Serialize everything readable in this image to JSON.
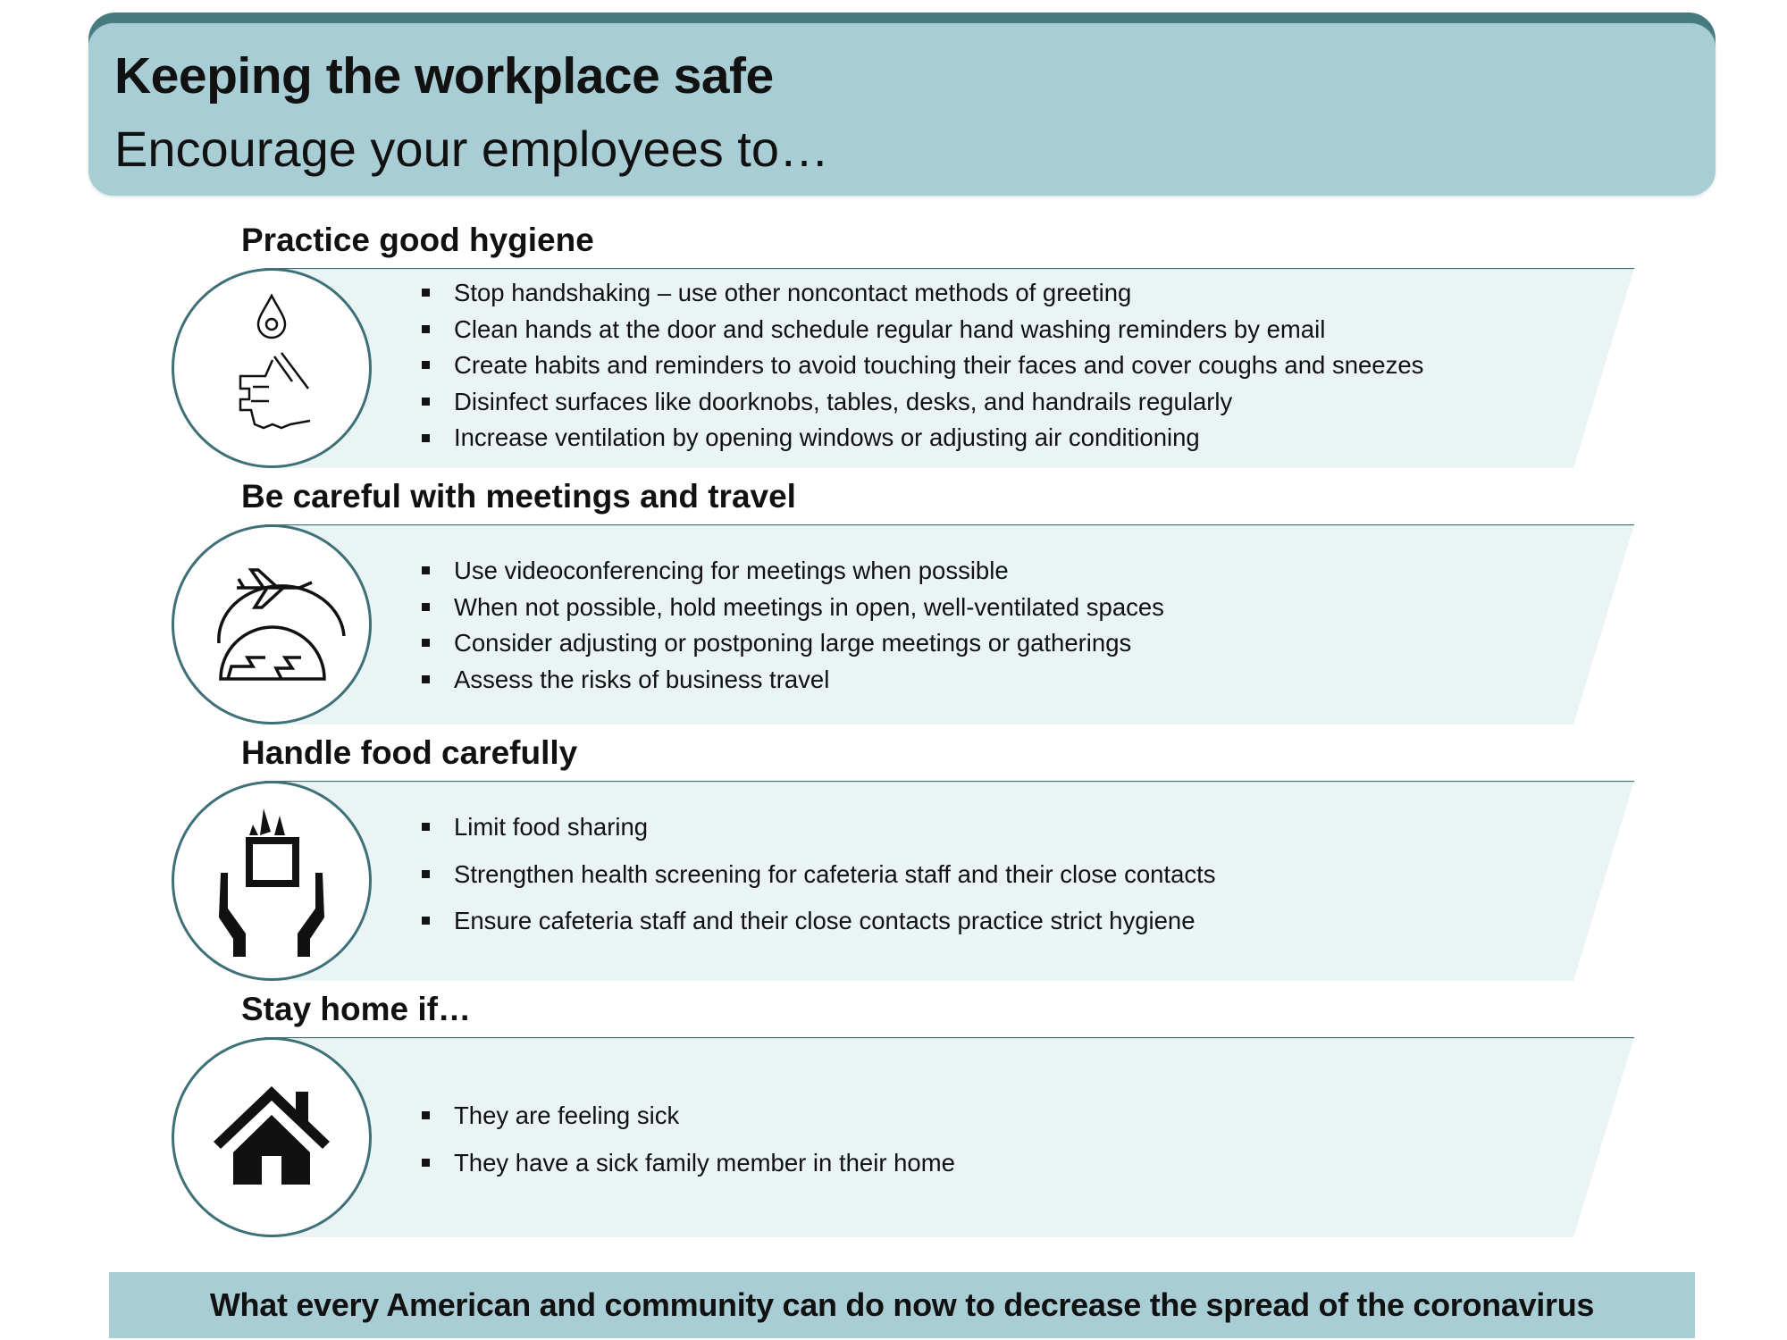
{
  "header": {
    "title": "Keeping the workplace safe",
    "subtitle": "Encourage your employees to…"
  },
  "colors": {
    "header_fill": "#a9cdd4",
    "header_accent": "#457a80",
    "band_fill": "#eaf4f5",
    "circle_stroke": "#3e7077"
  },
  "sections": [
    {
      "heading": "Practice good hygiene",
      "icon": "handwashing-icon",
      "bullets": [
        "Stop handshaking – use other noncontact methods of greeting",
        "Clean hands at the door and schedule regular hand washing reminders by email",
        "Create habits and reminders to avoid touching their faces and cover coughs and sneezes",
        "Disinfect surfaces like doorknobs, tables, desks, and handrails regularly",
        "Increase ventilation by opening windows or adjusting air conditioning"
      ]
    },
    {
      "heading": "Be careful with meetings and travel",
      "icon": "airplane-globe-icon",
      "bullets": [
        "Use videoconferencing for meetings when possible",
        "When not possible, hold meetings in open, well-ventilated spaces",
        "Consider adjusting or postponing large meetings or gatherings",
        "Assess the risks of business travel"
      ]
    },
    {
      "heading": "Handle food carefully",
      "icon": "food-hands-icon",
      "bullets": [
        "Limit food sharing",
        "Strengthen health screening for cafeteria staff and their close contacts",
        "Ensure cafeteria staff and their close contacts practice strict hygiene"
      ]
    },
    {
      "heading": "Stay home if…",
      "icon": "house-icon",
      "bullets": [
        "They are feeling sick",
        "They have a sick family member in their home"
      ]
    }
  ],
  "footer": {
    "text": "What every American and community can do now to decrease the spread of the coronavirus"
  }
}
